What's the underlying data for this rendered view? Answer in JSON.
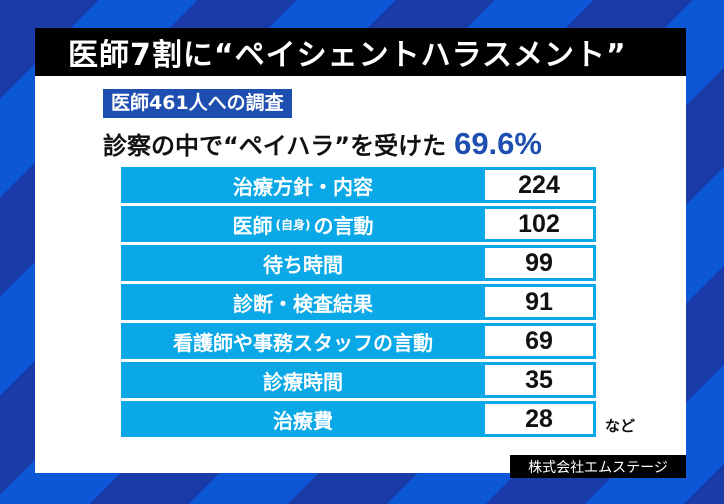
{
  "title": "医師7割に“ペイシェントハラスメント”",
  "survey_label": "医師461人への調査",
  "headline": {
    "text": "診察の中で“ペイハラ”を受けた",
    "percent": "69.6%"
  },
  "colors": {
    "bg_dark": "#1a3aa8",
    "bg_light": "#0b57d6",
    "row_cyan": "#0aa8e6",
    "label_blue": "#1e4fb0"
  },
  "table": {
    "rows": [
      {
        "label": "治療方針・内容",
        "value": "224"
      },
      {
        "label_main": "医師",
        "label_small": "(自身)",
        "label_tail": "の言動",
        "value": "102"
      },
      {
        "label": "待ち時間",
        "value": "99"
      },
      {
        "label": "診断・検査結果",
        "value": "91"
      },
      {
        "label": "看護師や事務スタッフの言動",
        "value": "69"
      },
      {
        "label": "診療時間",
        "value": "35"
      },
      {
        "label": "治療費",
        "value": "28"
      }
    ],
    "etc": "など"
  },
  "credit": "株式会社エムステージ"
}
